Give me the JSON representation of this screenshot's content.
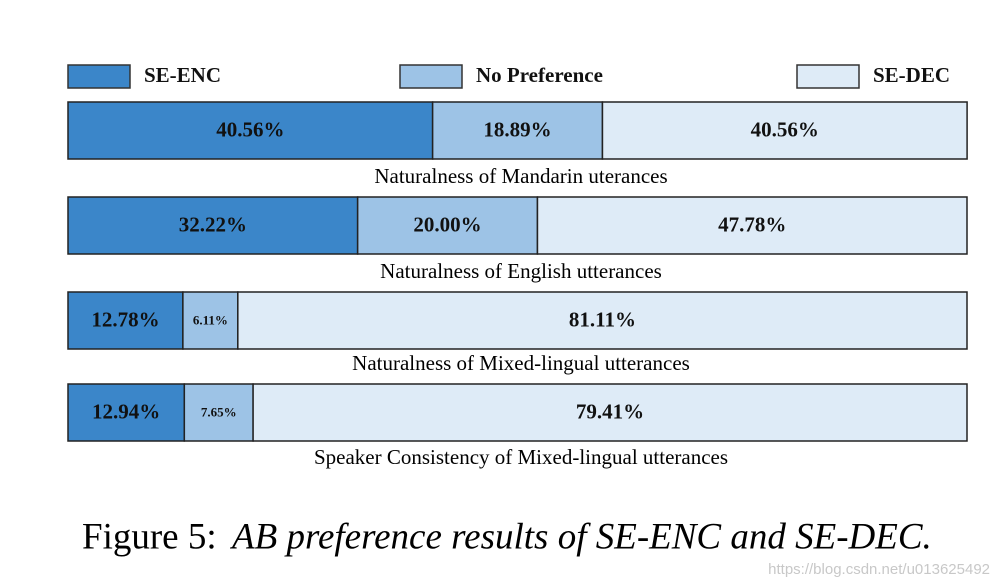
{
  "chart_data": {
    "type": "stacked_bar_h",
    "categories": [
      "Naturalness of  Mandarin uterances",
      "Naturalness of  English utterances",
      "Naturalness of  Mixed-lingual utterances",
      "Speaker Consistency of Mixed-lingual utterances"
    ],
    "series": [
      {
        "name": "SE-ENC",
        "color": "#3b86c9",
        "values": [
          40.56,
          32.22,
          12.78,
          12.94
        ],
        "value_labels": [
          "40.56%",
          "32.22%",
          "12.78%",
          "12.94%"
        ]
      },
      {
        "name": "No Preference",
        "color": "#9dc3e6",
        "values": [
          18.89,
          20.0,
          6.11,
          7.65
        ],
        "value_labels": [
          "18.89%",
          "20.00%",
          "6.11%",
          "7.65%"
        ]
      },
      {
        "name": "SE-DEC",
        "color": "#deebf7",
        "values": [
          40.56,
          47.78,
          81.11,
          79.41
        ],
        "value_labels": [
          "40.56%",
          "47.78%",
          "81.11%",
          "79.41%"
        ]
      }
    ],
    "xlim": [
      0,
      100
    ],
    "legend": "top",
    "caption_label": "Figure 5:",
    "caption": "AB preference results of SE-ENC and SE-DEC.",
    "watermark": "https://blog.csdn.net/u013625492"
  }
}
